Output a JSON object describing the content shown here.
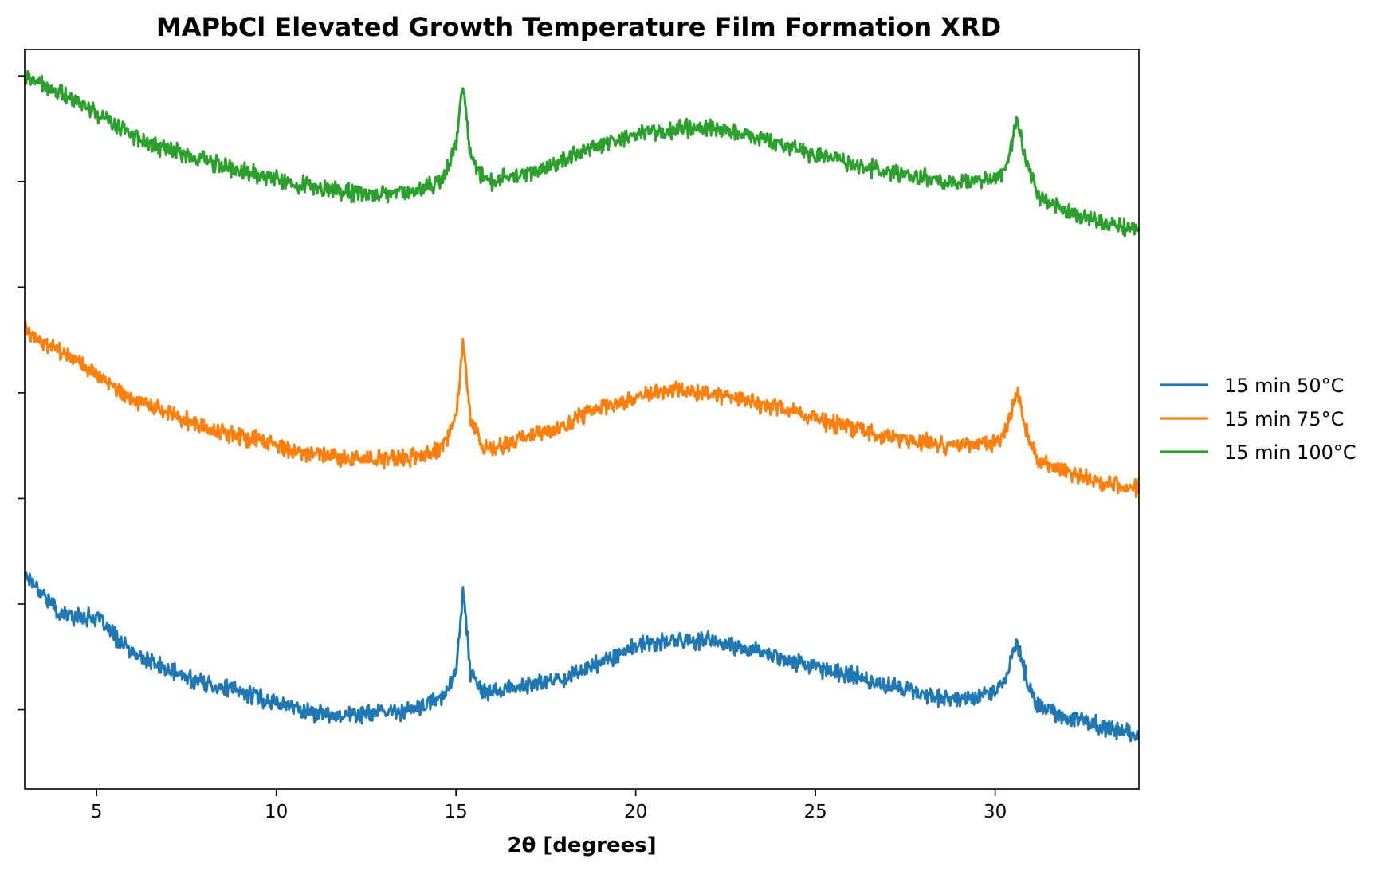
{
  "chart_data": {
    "type": "line",
    "title": "MAPbCl Elevated Growth Temperature Film Formation XRD",
    "xlabel": "2θ [degrees]",
    "ylabel": "",
    "xlim": [
      3.0,
      34.0
    ],
    "ylim": [
      0.0,
      7.0
    ],
    "xticks": [
      5,
      10,
      15,
      20,
      25,
      30
    ],
    "xtick_labels": [
      "5",
      "10",
      "15",
      "20",
      "25",
      "30"
    ],
    "yticks": [
      0.75,
      1.75,
      2.75,
      3.75,
      4.75,
      5.75,
      6.75
    ],
    "ytick_labels": [
      "",
      "",
      "",
      "",
      "",
      "",
      ""
    ],
    "grid": false,
    "legend_position": "right, outside plot",
    "x": [
      3.0,
      4.0,
      5.0,
      6.0,
      7.0,
      8.0,
      9.0,
      10.0,
      11.0,
      12.0,
      13.0,
      14.0,
      14.6,
      15.0,
      15.2,
      15.4,
      15.7,
      16.0,
      17.0,
      18.0,
      19.0,
      20.0,
      21.0,
      22.0,
      23.0,
      24.0,
      25.0,
      26.0,
      27.0,
      28.0,
      29.0,
      30.0,
      30.3,
      30.6,
      30.9,
      31.2,
      32.0,
      33.0,
      34.0
    ],
    "series": [
      {
        "name": "15 min 50°C",
        "color": "#1f77b4",
        "offset": 0.0,
        "values": [
          2.05,
          1.65,
          1.62,
          1.28,
          1.12,
          1.0,
          0.92,
          0.82,
          0.72,
          0.7,
          0.72,
          0.76,
          0.87,
          1.1,
          1.92,
          1.1,
          0.92,
          0.92,
          0.98,
          1.05,
          1.2,
          1.35,
          1.4,
          1.4,
          1.33,
          1.25,
          1.15,
          1.08,
          0.98,
          0.9,
          0.85,
          0.92,
          1.05,
          1.4,
          1.0,
          0.78,
          0.68,
          0.58,
          0.5
        ]
      },
      {
        "name": "15 min 75°C",
        "color": "#ff7f0e",
        "offset": 2.3,
        "values": [
          2.05,
          1.82,
          1.62,
          1.38,
          1.24,
          1.12,
          1.04,
          0.95,
          0.86,
          0.82,
          0.82,
          0.85,
          0.92,
          1.2,
          1.97,
          1.2,
          0.95,
          0.9,
          1.05,
          1.15,
          1.3,
          1.42,
          1.48,
          1.45,
          1.38,
          1.3,
          1.2,
          1.12,
          1.04,
          0.98,
          0.94,
          0.98,
          1.1,
          1.46,
          1.05,
          0.82,
          0.7,
          0.6,
          0.55
        ]
      },
      {
        "name": "15 min 100°C",
        "color": "#2ca02c",
        "offset": 4.5,
        "values": [
          2.25,
          2.08,
          1.9,
          1.68,
          1.55,
          1.45,
          1.36,
          1.28,
          1.2,
          1.14,
          1.14,
          1.17,
          1.26,
          1.6,
          2.18,
          1.5,
          1.3,
          1.25,
          1.32,
          1.45,
          1.6,
          1.7,
          1.74,
          1.76,
          1.7,
          1.6,
          1.5,
          1.42,
          1.34,
          1.28,
          1.24,
          1.27,
          1.4,
          1.82,
          1.38,
          1.12,
          0.96,
          0.86,
          0.8
        ]
      }
    ]
  }
}
